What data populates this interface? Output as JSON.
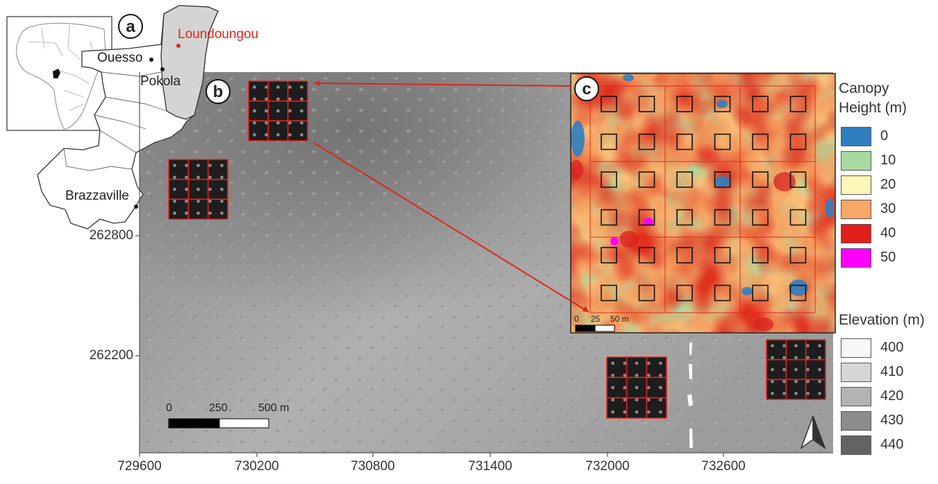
{
  "panels": {
    "a": {
      "label": "a",
      "towns": [
        {
          "name": "Ouesso",
          "color": "#222222"
        },
        {
          "name": "Pokola",
          "color": "#222222"
        },
        {
          "name": "Loundoungou",
          "color": "#e8231c"
        },
        {
          "name": "Brazzaville",
          "color": "#222222"
        }
      ]
    },
    "b": {
      "label": "b",
      "x_ticks": [
        "729600",
        "730200",
        "730800",
        "731400",
        "732000",
        "732600"
      ],
      "y_ticks": [
        "262800",
        "262200"
      ],
      "scale_bar": {
        "labels": [
          "0",
          "250",
          "500 m"
        ]
      }
    },
    "c": {
      "label": "c",
      "scale_bar": {
        "labels": [
          "0",
          "25",
          "50 m"
        ]
      }
    }
  },
  "legends": {
    "canopy": {
      "title_line1": "Canopy",
      "title_line2": "Height (m)",
      "items": [
        {
          "label": "0",
          "color": "#2f7fc0"
        },
        {
          "label": "10",
          "color": "#a8d9a0"
        },
        {
          "label": "20",
          "color": "#fdf6b8"
        },
        {
          "label": "30",
          "color": "#f8a766"
        },
        {
          "label": "40",
          "color": "#e01f1c"
        },
        {
          "label": "50",
          "color": "#ff00ff"
        }
      ]
    },
    "elevation": {
      "title": "Elevation (m)",
      "items": [
        {
          "label": "400",
          "color": "#f7f7f7"
        },
        {
          "label": "410",
          "color": "#d6d6d6"
        },
        {
          "label": "420",
          "color": "#b3b3b3"
        },
        {
          "label": "430",
          "color": "#8c8c8c"
        },
        {
          "label": "440",
          "color": "#636363"
        }
      ]
    }
  },
  "colors": {
    "plot_outline": "#e8231c",
    "study_region_fill": "#d4d4d4",
    "hillshade_base": "#9a9a9a"
  }
}
